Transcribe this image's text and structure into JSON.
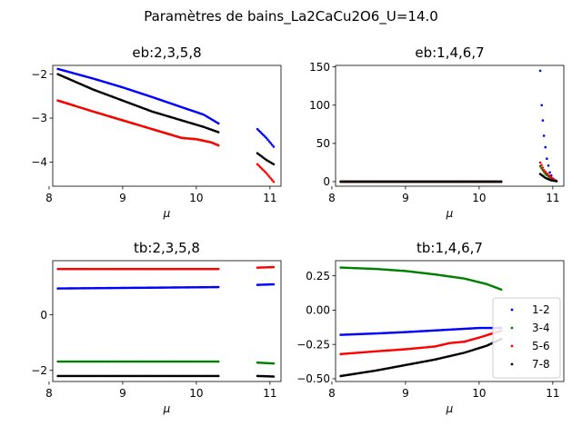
{
  "suptitle": "Paramètres de bains_La2CaCu2O6_U=14.0",
  "chart_data": [
    {
      "type": "scatter",
      "title": "eb:2,3,5,8",
      "xlabel": "μ",
      "ylabel": "",
      "xlim": [
        8.05,
        11.15
      ],
      "ylim": [
        -4.55,
        -1.8
      ],
      "xticks": [
        8,
        9,
        10,
        11
      ],
      "yticks": [
        -2,
        -3,
        -4
      ],
      "ytick_labels": [
        "−2",
        "−3",
        "−4"
      ],
      "series": [
        {
          "color": "#0000ff",
          "segments": [
            {
              "x": [
                8.12,
                8.6,
                9.0,
                9.4,
                9.8,
                10.1,
                10.3
              ],
              "y": [
                -1.88,
                -2.1,
                -2.3,
                -2.52,
                -2.75,
                -2.92,
                -3.12
              ]
            },
            {
              "x": [
                10.83,
                10.95,
                11.05
              ],
              "y": [
                -3.25,
                -3.45,
                -3.65
              ]
            }
          ]
        },
        {
          "color": "#008000",
          "segments": [
            {
              "x": [
                8.12,
                8.6,
                9.0,
                9.4,
                9.6,
                9.8,
                10.0,
                10.2,
                10.3
              ],
              "y": [
                -2.6,
                -2.85,
                -3.05,
                -3.25,
                -3.35,
                -3.45,
                -3.48,
                -3.55,
                -3.62
              ]
            }
          ]
        },
        {
          "color": "#ff0000",
          "segments": [
            {
              "x": [
                8.12,
                8.6,
                9.0,
                9.4,
                9.8,
                10.0,
                10.2,
                10.3
              ],
              "y": [
                -2.6,
                -2.85,
                -3.05,
                -3.25,
                -3.45,
                -3.48,
                -3.55,
                -3.62
              ]
            },
            {
              "x": [
                10.83,
                10.95,
                11.05
              ],
              "y": [
                -4.05,
                -4.25,
                -4.45
              ]
            }
          ]
        },
        {
          "color": "#000000",
          "segments": [
            {
              "x": [
                8.12,
                8.6,
                9.0,
                9.4,
                9.8,
                10.1,
                10.3
              ],
              "y": [
                -2.0,
                -2.35,
                -2.6,
                -2.85,
                -3.05,
                -3.2,
                -3.32
              ]
            },
            {
              "x": [
                10.83,
                10.95,
                11.05
              ],
              "y": [
                -3.8,
                -3.95,
                -4.05
              ]
            }
          ]
        }
      ]
    },
    {
      "type": "scatter",
      "title": "eb:1,4,6,7",
      "xlabel": "μ",
      "ylabel": "",
      "xlim": [
        8.05,
        11.15
      ],
      "ylim": [
        -6,
        152
      ],
      "xticks": [
        8,
        9,
        10,
        11
      ],
      "yticks": [
        0,
        50,
        100,
        150
      ],
      "ytick_labels": [
        "0",
        "50",
        "100",
        "150"
      ],
      "series": [
        {
          "color": "#0000ff",
          "segments": [
            {
              "x": [
                8.12,
                9.0,
                10.3
              ],
              "y": [
                0,
                0,
                0
              ]
            },
            {
              "x": [
                10.83,
                10.85,
                10.88,
                10.92,
                10.96,
                11.0,
                11.04
              ],
              "y": [
                145,
                100,
                60,
                30,
                12,
                4,
                1
              ]
            }
          ]
        },
        {
          "color": "#008000",
          "segments": [
            {
              "x": [
                8.12,
                9.0,
                10.3
              ],
              "y": [
                0,
                0,
                0
              ]
            },
            {
              "x": [
                10.83,
                10.9,
                11.0,
                11.05
              ],
              "y": [
                20,
                10,
                3,
                1
              ]
            }
          ]
        },
        {
          "color": "#ff0000",
          "segments": [
            {
              "x": [
                8.12,
                9.0,
                10.3
              ],
              "y": [
                0,
                0,
                0
              ]
            },
            {
              "x": [
                10.83,
                10.88,
                10.95,
                11.02,
                11.05
              ],
              "y": [
                25,
                15,
                8,
                2,
                1
              ]
            }
          ]
        },
        {
          "color": "#000000",
          "segments": [
            {
              "x": [
                8.12,
                9.0,
                10.3
              ],
              "y": [
                0,
                0,
                0
              ]
            },
            {
              "x": [
                10.83,
                10.9,
                10.97,
                11.05
              ],
              "y": [
                10,
                5,
                2,
                0.5
              ]
            }
          ]
        }
      ]
    },
    {
      "type": "scatter",
      "title": "tb:2,3,5,8",
      "xlabel": "μ",
      "ylabel": "",
      "xlim": [
        8.05,
        11.15
      ],
      "ylim": [
        -2.4,
        1.95
      ],
      "xticks": [
        8,
        9,
        10,
        11
      ],
      "yticks": [
        0,
        -2
      ],
      "ytick_labels": [
        "0",
        "−2"
      ],
      "series": [
        {
          "color": "#0000ff",
          "segments": [
            {
              "x": [
                8.12,
                9.0,
                10.3
              ],
              "y": [
                0.95,
                0.97,
                1.0
              ]
            },
            {
              "x": [
                10.83,
                11.05
              ],
              "y": [
                1.08,
                1.1
              ]
            }
          ]
        },
        {
          "color": "#008000",
          "segments": [
            {
              "x": [
                8.12,
                9.0,
                10.3
              ],
              "y": [
                -1.68,
                -1.68,
                -1.68
              ]
            },
            {
              "x": [
                10.83,
                11.05
              ],
              "y": [
                -1.72,
                -1.75
              ]
            }
          ]
        },
        {
          "color": "#ff0000",
          "segments": [
            {
              "x": [
                8.12,
                9.0,
                10.3
              ],
              "y": [
                1.65,
                1.65,
                1.65
              ]
            },
            {
              "x": [
                10.83,
                11.05
              ],
              "y": [
                1.7,
                1.72
              ]
            }
          ]
        },
        {
          "color": "#000000",
          "segments": [
            {
              "x": [
                8.12,
                9.0,
                10.3
              ],
              "y": [
                -2.2,
                -2.2,
                -2.2
              ]
            },
            {
              "x": [
                10.83,
                11.05
              ],
              "y": [
                -2.2,
                -2.22
              ]
            }
          ]
        }
      ]
    },
    {
      "type": "scatter",
      "title": "tb:1,4,6,7",
      "xlabel": "μ",
      "ylabel": "",
      "xlim": [
        8.05,
        11.15
      ],
      "ylim": [
        -0.52,
        0.36
      ],
      "xticks": [
        8,
        9,
        10,
        11
      ],
      "yticks": [
        0.25,
        0.0,
        -0.25,
        -0.5
      ],
      "ytick_labels": [
        "0.25",
        "0.00",
        "−0.25",
        "−0.50"
      ],
      "legend": {
        "location": "lower right",
        "entries": [
          "1-2",
          "3-4",
          "5-6",
          "7-8"
        ]
      },
      "series": [
        {
          "name": "1-2",
          "color": "#0000ff",
          "segments": [
            {
              "x": [
                8.12,
                8.6,
                9.0,
                9.5,
                10.0,
                10.3
              ],
              "y": [
                -0.18,
                -0.17,
                -0.16,
                -0.145,
                -0.13,
                -0.13
              ]
            }
          ]
        },
        {
          "name": "3-4",
          "color": "#008000",
          "segments": [
            {
              "x": [
                8.12,
                8.6,
                9.0,
                9.4,
                9.8,
                10.1,
                10.3
              ],
              "y": [
                0.31,
                0.3,
                0.285,
                0.26,
                0.23,
                0.19,
                0.15
              ]
            }
          ]
        },
        {
          "name": "5-6",
          "color": "#ff0000",
          "segments": [
            {
              "x": [
                8.12,
                8.6,
                9.0,
                9.4,
                9.6,
                9.8,
                10.0,
                10.3
              ],
              "y": [
                -0.32,
                -0.3,
                -0.285,
                -0.265,
                -0.24,
                -0.23,
                -0.2,
                -0.15
              ]
            }
          ]
        },
        {
          "name": "7-8",
          "color": "#000000",
          "segments": [
            {
              "x": [
                8.12,
                8.6,
                9.0,
                9.4,
                9.8,
                10.1,
                10.3
              ],
              "y": [
                -0.48,
                -0.44,
                -0.4,
                -0.36,
                -0.31,
                -0.26,
                -0.21
              ]
            }
          ]
        }
      ]
    }
  ]
}
